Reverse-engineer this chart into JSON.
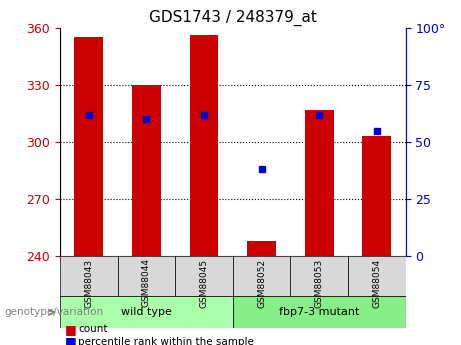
{
  "title": "GDS1743 / 248379_at",
  "samples": [
    "GSM88043",
    "GSM88044",
    "GSM88045",
    "GSM88052",
    "GSM88053",
    "GSM88054"
  ],
  "counts": [
    355,
    330,
    356,
    248,
    317,
    303
  ],
  "percentiles": [
    62,
    60,
    62,
    38,
    62,
    55
  ],
  "ylim_left": [
    240,
    360
  ],
  "ylim_right": [
    0,
    100
  ],
  "yticks_left": [
    240,
    270,
    300,
    330,
    360
  ],
  "yticks_right": [
    0,
    25,
    50,
    75,
    100
  ],
  "bar_color": "#cc0000",
  "dot_color": "#0000cc",
  "bg_color": "#f0f0f0",
  "wild_type": [
    "GSM88043",
    "GSM88044",
    "GSM88045"
  ],
  "mutant": [
    "GSM88052",
    "GSM88053",
    "GSM88054"
  ],
  "wild_type_label": "wild type",
  "mutant_label": "fbp7-3 mutant",
  "group_bg_wt": "#aaffaa",
  "group_bg_mut": "#88ee88",
  "xlabel_genotype": "genotype/variation",
  "legend_count": "count",
  "legend_percentile": "percentile rank within the sample",
  "bar_width": 0.5,
  "title_fontsize": 11,
  "tick_fontsize": 9,
  "label_fontsize": 9
}
